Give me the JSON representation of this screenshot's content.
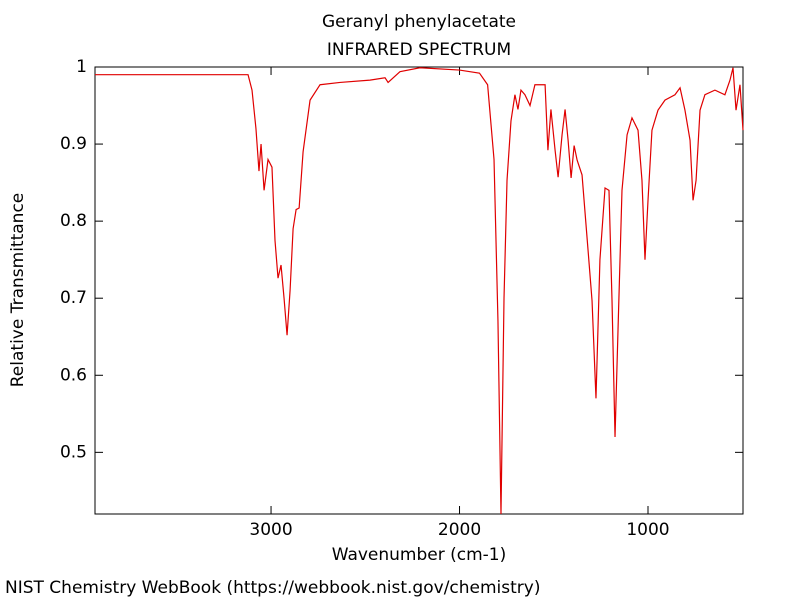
{
  "chart_data": {
    "type": "line",
    "title": "Geranyl phenylacetate",
    "subtitle": "INFRARED SPECTRUM",
    "x_label": "Wavenumber (cm-1)",
    "y_label": "Relative Transmittance",
    "source": "NIST Chemistry WebBook (https://webbook.nist.gov/chemistry)",
    "xlim": [
      3934,
      496
    ],
    "ylim": [
      0.42,
      1
    ],
    "xticks": [
      3000,
      2000,
      1000
    ],
    "yticks": [
      0.5,
      0.6,
      0.7,
      0.8,
      0.9,
      1
    ],
    "series": [
      {
        "name": "Geranyl phenylacetate",
        "color": "#e00000",
        "x": [
          3934,
          3854,
          3748,
          3589,
          3377,
          3164,
          3122,
          3101,
          3080,
          3064,
          3053,
          3037,
          3016,
          2995,
          2979,
          2963,
          2947,
          2931,
          2915,
          2899,
          2883,
          2867,
          2851,
          2830,
          2793,
          2740,
          2634,
          2475,
          2395,
          2379,
          2316,
          2210,
          2000,
          1894,
          1851,
          1817,
          1796,
          1780,
          1764,
          1748,
          1727,
          1706,
          1690,
          1674,
          1653,
          1626,
          1600,
          1546,
          1531,
          1515,
          1493,
          1477,
          1456,
          1440,
          1424,
          1408,
          1392,
          1376,
          1350,
          1318,
          1297,
          1276,
          1255,
          1228,
          1207,
          1191,
          1175,
          1159,
          1138,
          1111,
          1085,
          1053,
          1032,
          1016,
          1000,
          979,
          947,
          910,
          857,
          830,
          804,
          777,
          761,
          745,
          724,
          698,
          645,
          592,
          565,
          549,
          533,
          512,
          496
        ],
        "values": [
          0.99,
          0.99,
          0.99,
          0.99,
          0.99,
          0.99,
          0.99,
          0.97,
          0.92,
          0.865,
          0.9,
          0.84,
          0.88,
          0.87,
          0.775,
          0.726,
          0.743,
          0.7,
          0.652,
          0.71,
          0.79,
          0.815,
          0.817,
          0.89,
          0.957,
          0.977,
          0.98,
          0.983,
          0.986,
          0.98,
          0.994,
          0.999,
          0.996,
          0.992,
          0.977,
          0.88,
          0.67,
          0.42,
          0.7,
          0.853,
          0.93,
          0.964,
          0.945,
          0.97,
          0.964,
          0.95,
          0.977,
          0.977,
          0.892,
          0.945,
          0.892,
          0.857,
          0.912,
          0.945,
          0.905,
          0.856,
          0.898,
          0.879,
          0.86,
          0.762,
          0.697,
          0.57,
          0.75,
          0.843,
          0.84,
          0.697,
          0.52,
          0.66,
          0.84,
          0.912,
          0.934,
          0.918,
          0.853,
          0.75,
          0.827,
          0.918,
          0.944,
          0.957,
          0.964,
          0.973,
          0.944,
          0.905,
          0.827,
          0.853,
          0.944,
          0.964,
          0.97,
          0.964,
          0.983,
          0.999,
          0.944,
          0.977,
          0.918
        ]
      }
    ]
  }
}
